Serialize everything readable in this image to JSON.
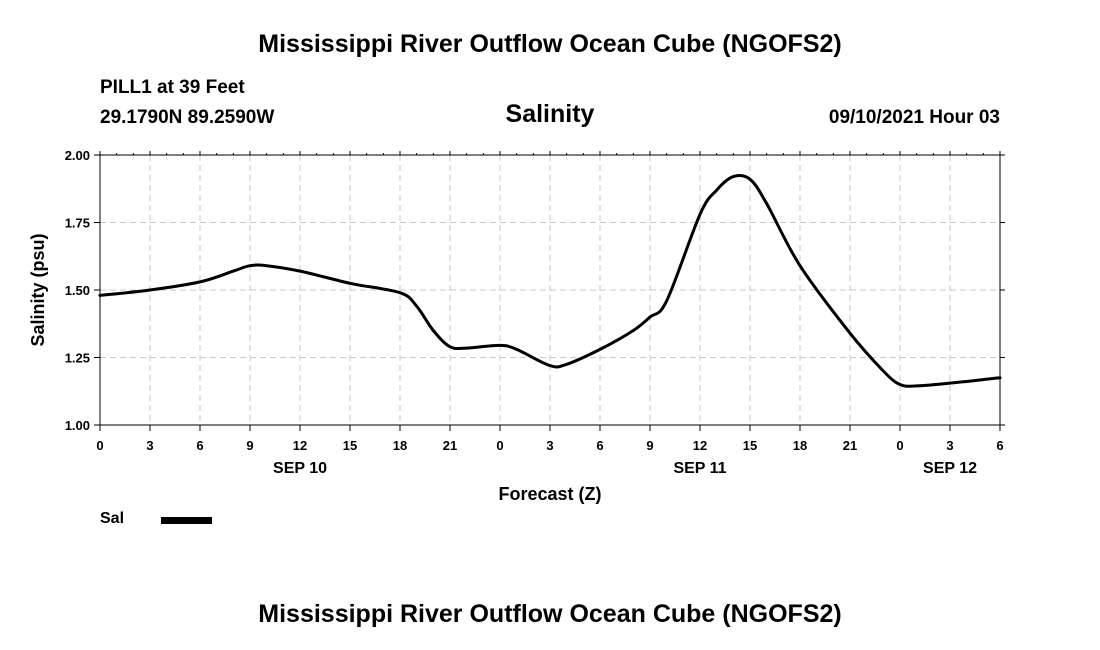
{
  "header": {
    "title": "Mississippi River Outflow Ocean Cube (NGOFS2)",
    "station": "PILL1 at 39 Feet",
    "coordinates": "29.1790N  89.2590W",
    "subtitle": "Salinity",
    "datetime": "09/10/2021 Hour 03"
  },
  "footer": {
    "title": "Mississippi River Outflow Ocean Cube (NGOFS2)"
  },
  "legend": {
    "label": "Sal"
  },
  "chart_data": {
    "type": "line",
    "title": "Salinity",
    "xlabel": "Forecast (Z)",
    "ylabel": "Salinity (psu)",
    "ylim": [
      1.0,
      2.0
    ],
    "xlim": [
      0,
      54
    ],
    "yticks": [
      1.0,
      1.25,
      1.5,
      1.75,
      2.0
    ],
    "ytick_labels": [
      "1.00",
      "1.25",
      "1.50",
      "1.75",
      "2.00"
    ],
    "xticks": [
      0,
      3,
      6,
      9,
      12,
      15,
      18,
      21,
      24,
      27,
      30,
      33,
      36,
      39,
      42,
      45,
      48,
      51,
      54
    ],
    "xtick_labels": [
      "0",
      "3",
      "6",
      "9",
      "12",
      "15",
      "18",
      "21",
      "0",
      "3",
      "6",
      "9",
      "12",
      "15",
      "18",
      "21",
      "0",
      "3",
      "6"
    ],
    "date_labels": [
      {
        "x": 12,
        "label": "SEP 10"
      },
      {
        "x": 36,
        "label": "SEP 11"
      },
      {
        "x": 51,
        "label": "SEP 12"
      }
    ],
    "grid": true,
    "series": [
      {
        "name": "Sal",
        "x": [
          0,
          3,
          6,
          8,
          9,
          10,
          12,
          15,
          18,
          19,
          20,
          21,
          22,
          24,
          25,
          27,
          28,
          30,
          32,
          33,
          34,
          36,
          37,
          38,
          39,
          40,
          42,
          45,
          47,
          48,
          49,
          51,
          54
        ],
        "values": [
          1.48,
          1.5,
          1.53,
          1.57,
          1.59,
          1.59,
          1.57,
          1.525,
          1.49,
          1.44,
          1.35,
          1.29,
          1.285,
          1.295,
          1.28,
          1.22,
          1.225,
          1.28,
          1.35,
          1.4,
          1.46,
          1.78,
          1.87,
          1.92,
          1.91,
          1.82,
          1.59,
          1.34,
          1.2,
          1.15,
          1.145,
          1.155,
          1.175
        ]
      }
    ]
  }
}
